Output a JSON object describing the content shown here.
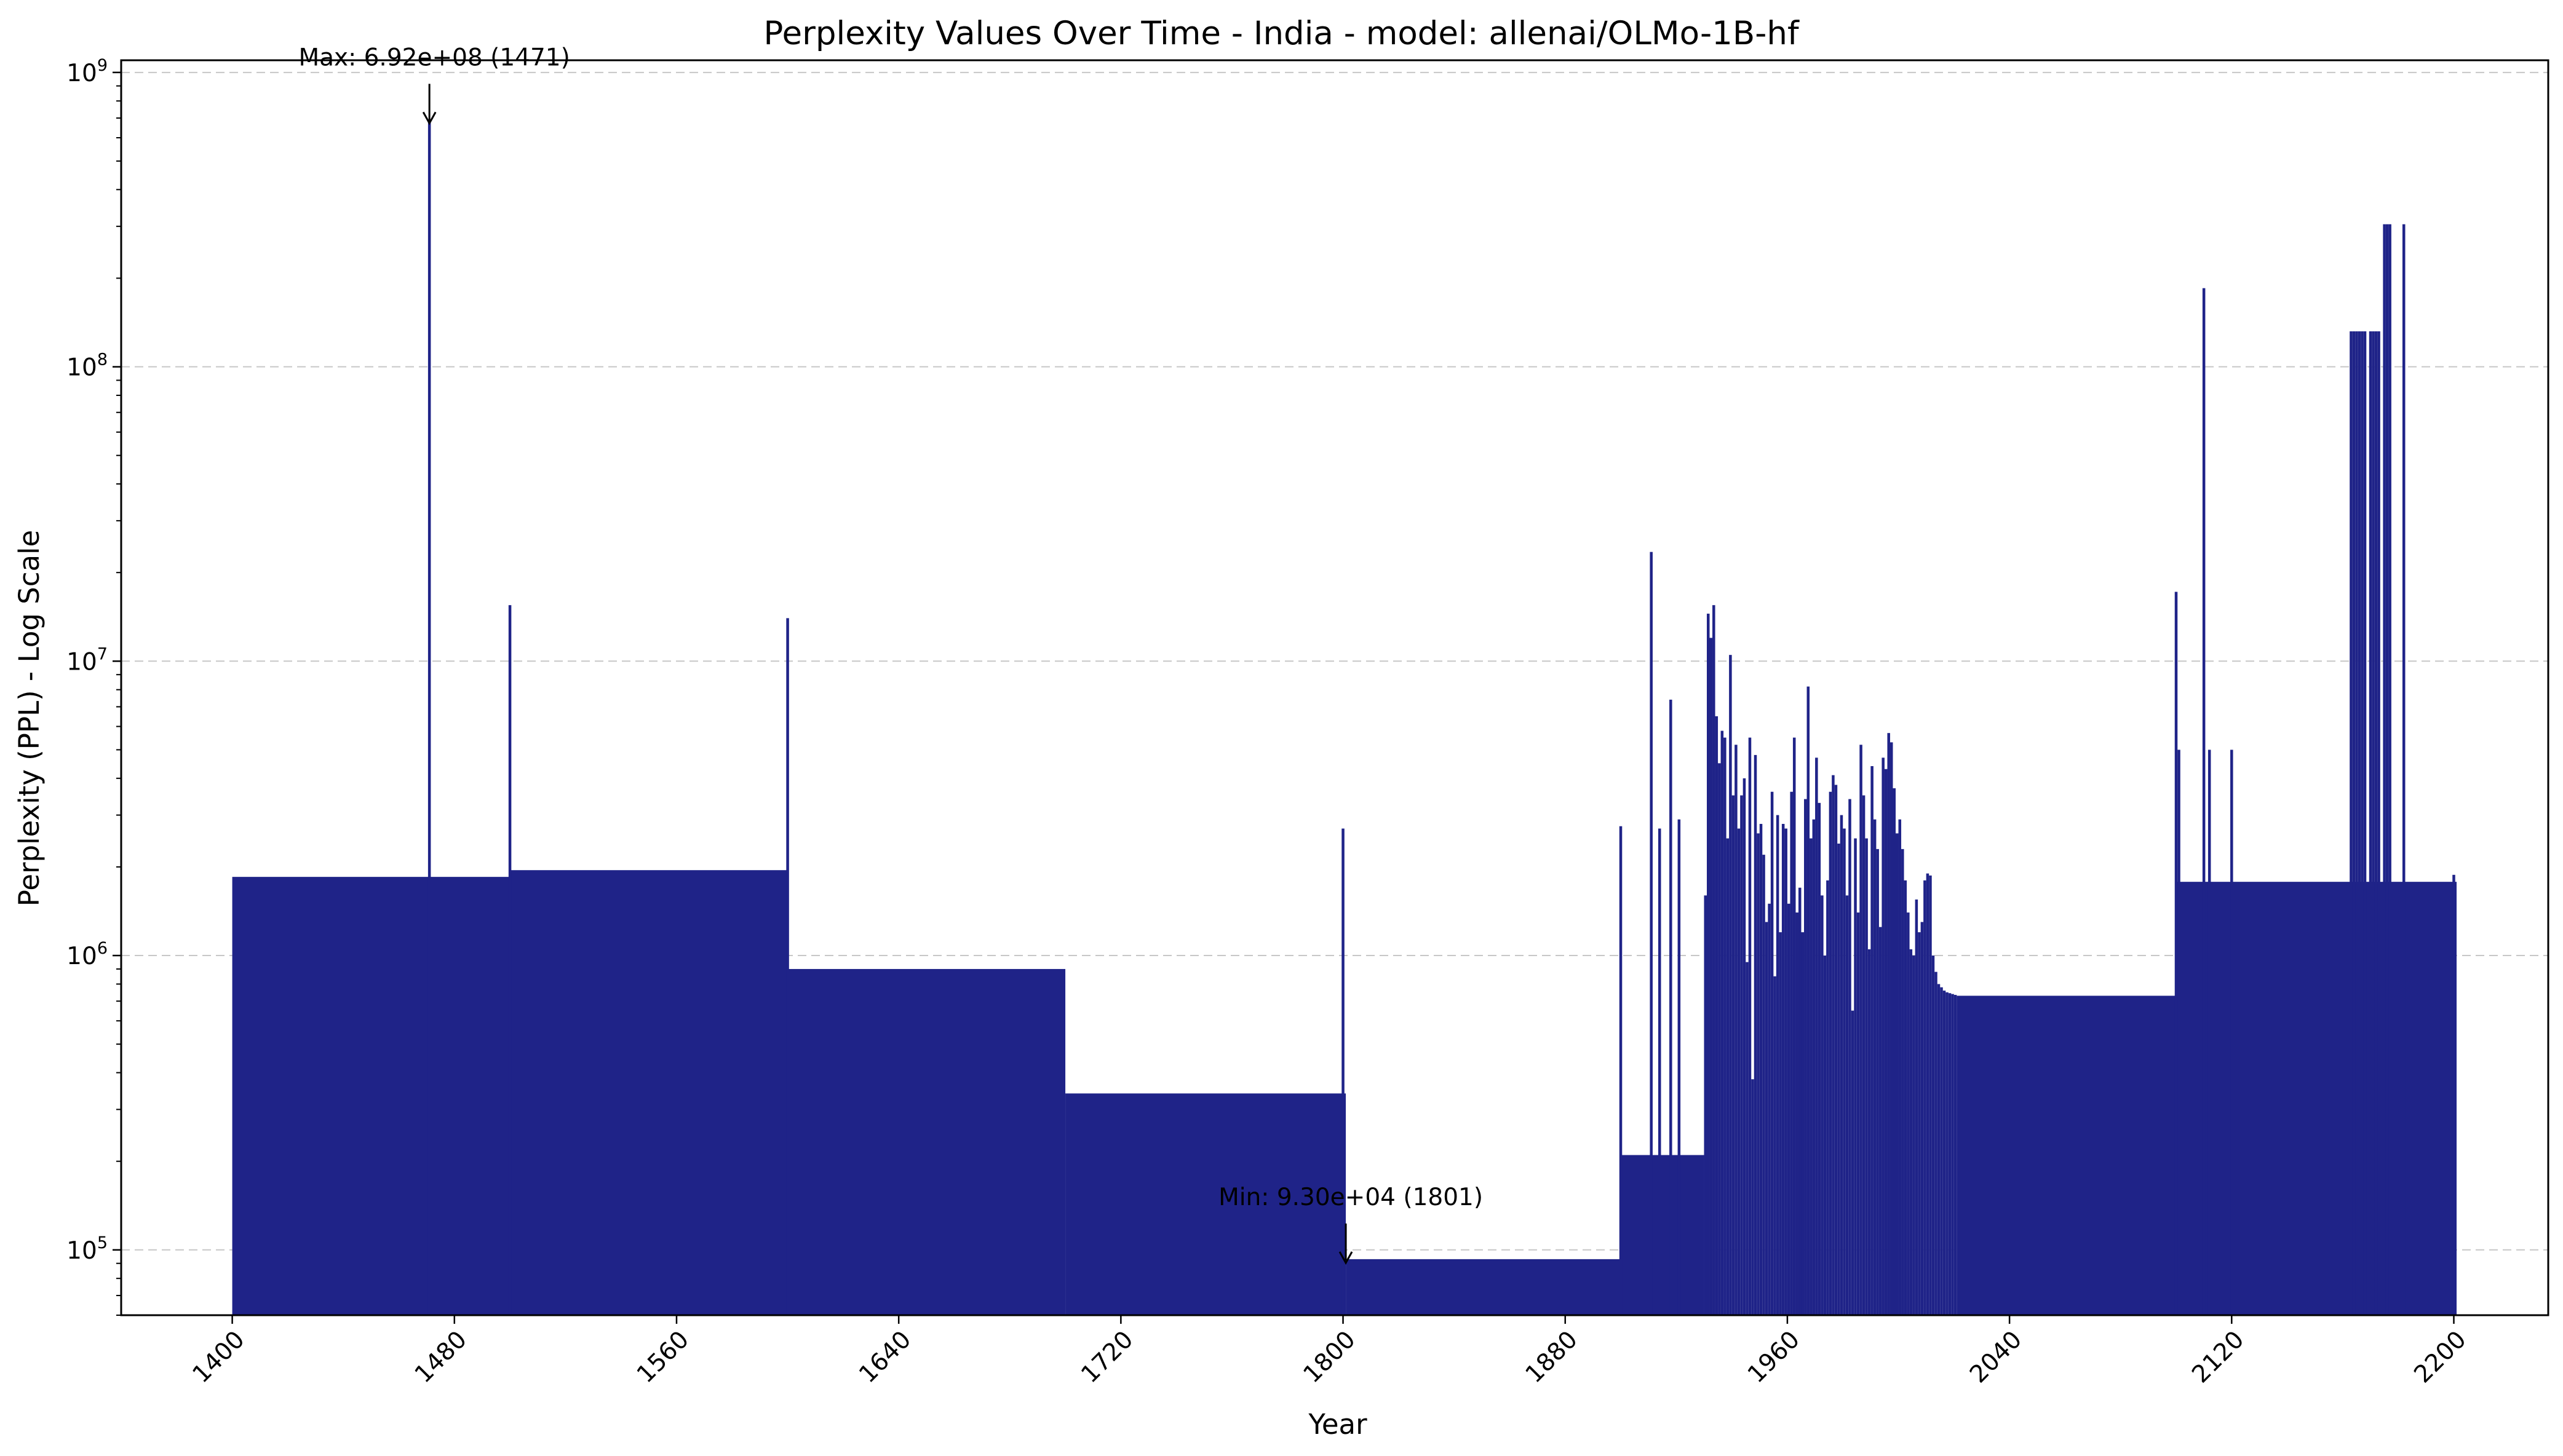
{
  "chart_data": {
    "type": "bar",
    "title": "Perplexity Values Over Time - India - model: allenai/OLMo-1B-hf",
    "xlabel": "Year",
    "ylabel": "Perplexity (PPL) - Log Scale",
    "xlim": [
      1360,
      2234
    ],
    "ylim": [
      60000,
      1100000000
    ],
    "yscale": "log",
    "grid": "y-dashed",
    "bar_color": "#1f2388",
    "x_ticks": [
      1400,
      1480,
      1560,
      1640,
      1720,
      1800,
      1880,
      1960,
      2040,
      2120,
      2200
    ],
    "y_ticks": [
      {
        "value": 100000,
        "label": "10^5"
      },
      {
        "value": 1000000,
        "label": "10^6"
      },
      {
        "value": 10000000,
        "label": "10^7"
      },
      {
        "value": 100000000,
        "label": "10^8"
      },
      {
        "value": 1000000000,
        "label": "10^9"
      }
    ],
    "segments": [
      {
        "x_start": 1400,
        "x_end": 1500,
        "value": 1850000
      },
      {
        "x_start": 1500,
        "x_end": 1600,
        "value": 1950000
      },
      {
        "x_start": 1600,
        "x_end": 1700,
        "value": 900000
      },
      {
        "x_start": 1700,
        "x_end": 1801,
        "value": 340000
      },
      {
        "x_start": 1801,
        "x_end": 1900,
        "value": 93000
      },
      {
        "x_start": 1900,
        "x_end": 1930,
        "value": 210000
      },
      {
        "x_start": 2021,
        "x_end": 2100,
        "value": 730000
      },
      {
        "x_start": 2100,
        "x_end": 2201,
        "value": 1780000
      }
    ],
    "spikes": [
      {
        "x": 1471,
        "value": 692000000
      },
      {
        "x": 1500,
        "value": 15500000
      },
      {
        "x": 1600,
        "value": 14000000
      },
      {
        "x": 1800,
        "value": 2700000
      },
      {
        "x": 1900,
        "value": 2750000
      },
      {
        "x": 1911,
        "value": 23500000
      },
      {
        "x": 1914,
        "value": 2700000
      },
      {
        "x": 1918,
        "value": 7400000
      },
      {
        "x": 1921,
        "value": 2900000
      },
      {
        "x": 2100,
        "value": 17200000
      },
      {
        "x": 2101,
        "value": 5000000
      },
      {
        "x": 2110,
        "value": 185000000
      },
      {
        "x": 2112,
        "value": 5000000
      },
      {
        "x": 2120,
        "value": 5000000
      },
      {
        "x": 2163,
        "value": 132000000
      },
      {
        "x": 2164,
        "value": 132000000
      },
      {
        "x": 2165,
        "value": 132000000
      },
      {
        "x": 2166,
        "value": 132000000
      },
      {
        "x": 2167,
        "value": 132000000
      },
      {
        "x": 2168,
        "value": 132000000
      },
      {
        "x": 2170,
        "value": 132000000
      },
      {
        "x": 2171,
        "value": 132000000
      },
      {
        "x": 2172,
        "value": 132000000
      },
      {
        "x": 2173,
        "value": 132000000
      },
      {
        "x": 2175,
        "value": 305000000
      },
      {
        "x": 2176,
        "value": 305000000
      },
      {
        "x": 2177,
        "value": 305000000
      },
      {
        "x": 2182,
        "value": 305000000
      },
      {
        "x": 2200,
        "value": 1880000
      }
    ],
    "cluster": {
      "x_start": 1930,
      "x_end": 2021,
      "values": [
        1600000,
        14500000,
        12000000,
        15500000,
        6500000,
        4500000,
        5800000,
        5500000,
        2500000,
        10500000,
        3500000,
        5200000,
        2700000,
        3500000,
        4000000,
        950000,
        5500000,
        380000,
        4800000,
        2600000,
        2800000,
        2200000,
        1300000,
        1500000,
        3600000,
        850000,
        3000000,
        1200000,
        2800000,
        2700000,
        1500000,
        3600000,
        5500000,
        1400000,
        1700000,
        1200000,
        3400000,
        8200000,
        2500000,
        2900000,
        4700000,
        3300000,
        1600000,
        1000000,
        1800000,
        3600000,
        4100000,
        3800000,
        2400000,
        3000000,
        2700000,
        1600000,
        3400000,
        650000,
        2500000,
        1400000,
        5200000,
        3500000,
        2500000,
        1050000,
        4400000,
        2900000,
        2300000,
        1250000,
        4700000,
        4300000,
        5700000,
        5300000,
        3700000,
        2600000,
        2900000,
        2300000,
        1800000,
        1400000,
        1050000,
        1000000,
        1550000,
        1200000,
        1300000,
        1800000,
        1900000,
        1870000,
        1000000,
        880000,
        800000,
        780000,
        760000,
        750000,
        745000,
        740000,
        735000
      ]
    },
    "annotations": [
      {
        "text": "Max: 6.92e+08 (1471)",
        "x": 1471,
        "value": 692000000,
        "type": "max"
      },
      {
        "text": "Min: 9.30e+04 (1801)",
        "x": 1801,
        "value": 93000,
        "type": "min"
      }
    ]
  }
}
